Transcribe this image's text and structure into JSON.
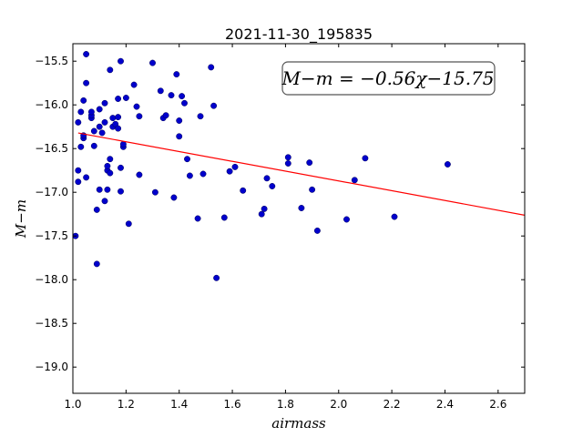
{
  "chart_data": {
    "type": "scatter",
    "title": "2021-11-30_195835",
    "xlabel": "airmass",
    "ylabel": "M−m",
    "xlim": [
      1.0,
      2.7
    ],
    "ylim": [
      -15.3,
      -19.3
    ],
    "y_inverted": true,
    "grid": false,
    "x_ticks": [
      1.0,
      1.2,
      1.4,
      1.6,
      1.8,
      2.0,
      2.2,
      2.4,
      2.6
    ],
    "x_tick_labels": [
      "1.0",
      "1.2",
      "1.4",
      "1.6",
      "1.8",
      "2.0",
      "2.2",
      "2.4",
      "2.6"
    ],
    "y_ticks": [
      -15.5,
      -16.0,
      -16.5,
      -17.0,
      -17.5,
      -18.0,
      -18.5,
      -19.0
    ],
    "y_tick_labels": [
      "−15.5",
      "−16.0",
      "−16.5",
      "−17.0",
      "−17.5",
      "−18.0",
      "−18.5",
      "−19.0"
    ],
    "annotation": "M−m = −0.56χ−15.75",
    "annotation_placement": "top-right",
    "fit": {
      "slope": -0.56,
      "intercept": -15.75,
      "x_range": [
        1.02,
        2.7
      ],
      "color": "#ff0000"
    },
    "point_color": "#0000cc",
    "points": [
      [
        1.01,
        -17.5
      ],
      [
        1.02,
        -16.75
      ],
      [
        1.02,
        -16.88
      ],
      [
        1.02,
        -16.2
      ],
      [
        1.03,
        -16.48
      ],
      [
        1.03,
        -16.08
      ],
      [
        1.04,
        -15.95
      ],
      [
        1.04,
        -16.38
      ],
      [
        1.04,
        -16.35
      ],
      [
        1.05,
        -15.42
      ],
      [
        1.05,
        -16.83
      ],
      [
        1.05,
        -15.75
      ],
      [
        1.07,
        -16.15
      ],
      [
        1.07,
        -16.12
      ],
      [
        1.07,
        -16.08
      ],
      [
        1.08,
        -16.3
      ],
      [
        1.08,
        -16.47
      ],
      [
        1.09,
        -17.2
      ],
      [
        1.09,
        -17.82
      ],
      [
        1.1,
        -16.05
      ],
      [
        1.1,
        -16.97
      ],
      [
        1.1,
        -16.25
      ],
      [
        1.11,
        -16.32
      ],
      [
        1.12,
        -16.2
      ],
      [
        1.12,
        -17.1
      ],
      [
        1.12,
        -15.98
      ],
      [
        1.13,
        -16.75
      ],
      [
        1.13,
        -16.97
      ],
      [
        1.13,
        -16.7
      ],
      [
        1.14,
        -15.6
      ],
      [
        1.14,
        -16.78
      ],
      [
        1.14,
        -16.62
      ],
      [
        1.15,
        -16.15
      ],
      [
        1.15,
        -16.25
      ],
      [
        1.16,
        -16.22
      ],
      [
        1.17,
        -16.27
      ],
      [
        1.17,
        -16.14
      ],
      [
        1.17,
        -15.93
      ],
      [
        1.18,
        -16.72
      ],
      [
        1.18,
        -15.5
      ],
      [
        1.18,
        -16.99
      ],
      [
        1.19,
        -16.48
      ],
      [
        1.19,
        -16.45
      ],
      [
        1.2,
        -15.92
      ],
      [
        1.21,
        -17.36
      ],
      [
        1.23,
        -15.77
      ],
      [
        1.24,
        -16.02
      ],
      [
        1.25,
        -16.13
      ],
      [
        1.25,
        -16.8
      ],
      [
        1.3,
        -15.52
      ],
      [
        1.31,
        -17.0
      ],
      [
        1.33,
        -15.84
      ],
      [
        1.34,
        -16.15
      ],
      [
        1.35,
        -16.12
      ],
      [
        1.37,
        -15.89
      ],
      [
        1.38,
        -17.06
      ],
      [
        1.39,
        -15.65
      ],
      [
        1.4,
        -16.18
      ],
      [
        1.4,
        -16.36
      ],
      [
        1.41,
        -15.9
      ],
      [
        1.42,
        -15.98
      ],
      [
        1.43,
        -16.62
      ],
      [
        1.44,
        -16.81
      ],
      [
        1.47,
        -17.3
      ],
      [
        1.48,
        -16.13
      ],
      [
        1.49,
        -16.79
      ],
      [
        1.52,
        -15.57
      ],
      [
        1.53,
        -16.01
      ],
      [
        1.54,
        -17.98
      ],
      [
        1.57,
        -17.29
      ],
      [
        1.59,
        -16.76
      ],
      [
        1.61,
        -16.71
      ],
      [
        1.64,
        -16.98
      ],
      [
        1.71,
        -17.25
      ],
      [
        1.72,
        -17.19
      ],
      [
        1.73,
        -16.84
      ],
      [
        1.75,
        -16.93
      ],
      [
        1.81,
        -16.67
      ],
      [
        1.81,
        -16.6
      ],
      [
        1.86,
        -17.18
      ],
      [
        1.89,
        -16.66
      ],
      [
        1.9,
        -16.97
      ],
      [
        1.92,
        -17.44
      ],
      [
        2.03,
        -17.31
      ],
      [
        2.06,
        -16.86
      ],
      [
        2.1,
        -16.61
      ],
      [
        2.21,
        -17.28
      ],
      [
        2.41,
        -16.68
      ]
    ]
  }
}
